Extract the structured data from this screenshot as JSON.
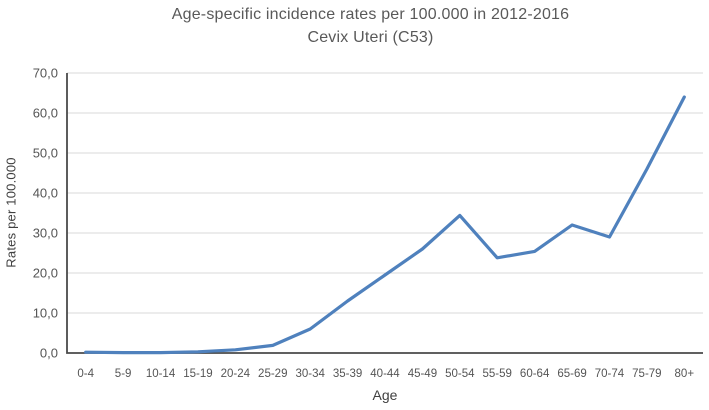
{
  "chart_data": {
    "type": "line",
    "title": "Age-specific incidence rates per 100.000 in 2012-2016",
    "subtitle": "Cevix Uteri (C53)",
    "xlabel": "Age",
    "ylabel": "Rates per 100.000",
    "categories": [
      "0-4",
      "5-9",
      "10-14",
      "15-19",
      "20-24",
      "25-29",
      "30-34",
      "35-39",
      "40-44",
      "45-49",
      "50-54",
      "55-59",
      "60-64",
      "65-69",
      "70-74",
      "75-79",
      "80+"
    ],
    "series": [
      {
        "name": "Age-specific incidence rate",
        "values": [
          0.2,
          0.1,
          0.1,
          0.3,
          0.8,
          1.9,
          6.0,
          13.0,
          19.5,
          26.0,
          34.4,
          23.8,
          25.4,
          32.0,
          29.0,
          46.0,
          64.0
        ]
      }
    ],
    "ylim": [
      0,
      70
    ],
    "y_ticks": [
      {
        "value": 0,
        "label": "0,0"
      },
      {
        "value": 10,
        "label": "10,0"
      },
      {
        "value": 20,
        "label": "20,0"
      },
      {
        "value": 30,
        "label": "30,0"
      },
      {
        "value": 40,
        "label": "40,0"
      },
      {
        "value": 50,
        "label": "50,0"
      },
      {
        "value": 60,
        "label": "60,0"
      },
      {
        "value": 70,
        "label": "70,0"
      }
    ],
    "grid": true,
    "legend": "none",
    "colors": {
      "line": "#4f81bd",
      "gridline": "#d9d9d9",
      "axis": "#4a4a4a",
      "tick_text": "#555555",
      "title_text": "#595959"
    }
  }
}
